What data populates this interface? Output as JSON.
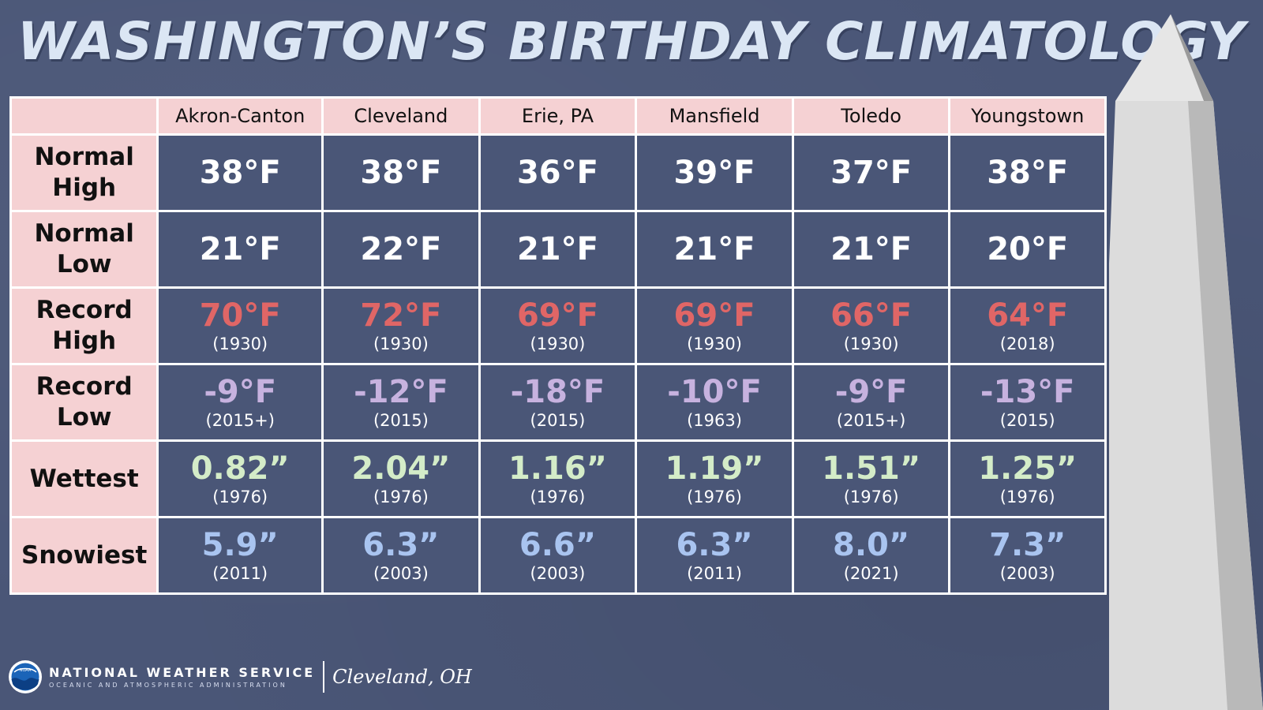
{
  "title": "WASHINGTON’S BIRTHDAY CLIMATOLOGY",
  "columns": [
    "Akron-Canton",
    "Cleveland",
    "Erie, PA",
    "Mansfield",
    "Toledo",
    "Youngstown"
  ],
  "rows": [
    {
      "label_lines": [
        "Normal",
        "High"
      ],
      "style": "normal",
      "cells": [
        {
          "value": "38°F"
        },
        {
          "value": "38°F"
        },
        {
          "value": "36°F"
        },
        {
          "value": "39°F"
        },
        {
          "value": "37°F"
        },
        {
          "value": "38°F"
        }
      ]
    },
    {
      "label_lines": [
        "Normal",
        "Low"
      ],
      "style": "normal",
      "cells": [
        {
          "value": "21°F"
        },
        {
          "value": "22°F"
        },
        {
          "value": "21°F"
        },
        {
          "value": "21°F"
        },
        {
          "value": "21°F"
        },
        {
          "value": "20°F"
        }
      ]
    },
    {
      "label_lines": [
        "Record",
        "High"
      ],
      "style": "high",
      "cells": [
        {
          "value": "70°F",
          "year": "(1930)"
        },
        {
          "value": "72°F",
          "year": "(1930)"
        },
        {
          "value": "69°F",
          "year": "(1930)"
        },
        {
          "value": "69°F",
          "year": "(1930)"
        },
        {
          "value": "66°F",
          "year": "(1930)"
        },
        {
          "value": "64°F",
          "year": "(2018)"
        }
      ]
    },
    {
      "label_lines": [
        "Record",
        "Low"
      ],
      "style": "low",
      "cells": [
        {
          "value": "-9°F",
          "year": "(2015+)"
        },
        {
          "value": "-12°F",
          "year": "(2015)"
        },
        {
          "value": "-18°F",
          "year": "(2015)"
        },
        {
          "value": "-10°F",
          "year": "(1963)"
        },
        {
          "value": "-9°F",
          "year": "(2015+)"
        },
        {
          "value": "-13°F",
          "year": "(2015)"
        }
      ]
    },
    {
      "label_lines": [
        "Wettest"
      ],
      "style": "wet",
      "cells": [
        {
          "value": "0.82”",
          "year": "(1976)"
        },
        {
          "value": "2.04”",
          "year": "(1976)"
        },
        {
          "value": "1.16”",
          "year": "(1976)"
        },
        {
          "value": "1.19”",
          "year": "(1976)"
        },
        {
          "value": "1.51”",
          "year": "(1976)"
        },
        {
          "value": "1.25”",
          "year": "(1976)"
        }
      ]
    },
    {
      "label_lines": [
        "Snowiest"
      ],
      "style": "snow",
      "cells": [
        {
          "value": "5.9”",
          "year": "(2011)"
        },
        {
          "value": "6.3”",
          "year": "(2003)"
        },
        {
          "value": "6.6”",
          "year": "(2003)"
        },
        {
          "value": "6.3”",
          "year": "(2011)"
        },
        {
          "value": "8.0”",
          "year": "(2021)"
        },
        {
          "value": "7.3”",
          "year": "(2003)"
        }
      ]
    }
  ],
  "colors": {
    "background": "#4a5677",
    "header_fill": "#f5d1d3",
    "title": "#dbe6f4",
    "normal": "#ffffff",
    "record_high": "#e06666",
    "record_low": "#c7b2df",
    "wettest": "#d4ecc8",
    "snowiest": "#a9c4f0"
  },
  "icons": {
    "logo": "noaa-logo-icon",
    "monument": "washington-monument-icon"
  },
  "footer": {
    "logo_text": "NOAA",
    "agency": "NATIONAL WEATHER SERVICE",
    "agency_sub": "OCEANIC AND ATMOSPHERIC ADMINISTRATION",
    "office": "Cleveland, OH"
  }
}
